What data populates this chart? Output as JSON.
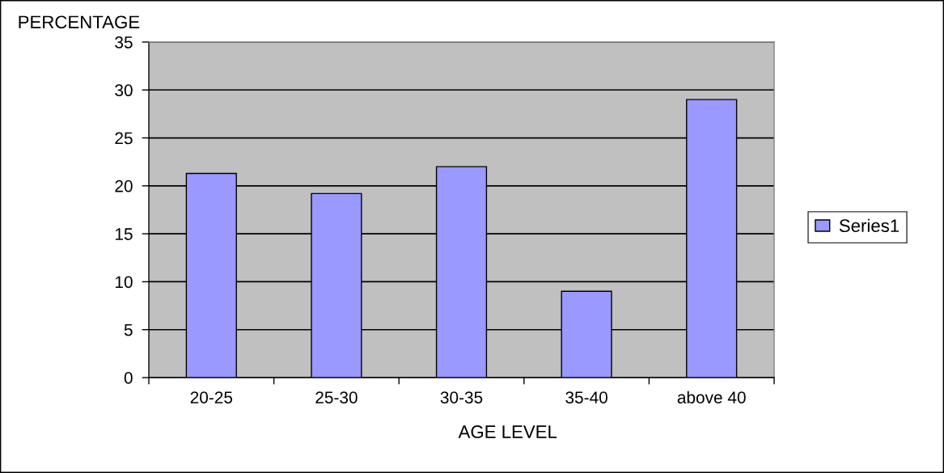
{
  "chart_data": {
    "type": "bar",
    "xlabel": "AGE LEVEL",
    "ylabel": "PERCENTAGE",
    "categories": [
      "20-25",
      "25-30",
      "30-35",
      "35-40",
      "above 40"
    ],
    "series": [
      {
        "name": "Series1",
        "color": "#9999ff",
        "values": [
          21.3,
          19.2,
          22,
          9,
          29
        ]
      }
    ],
    "ylim": [
      0,
      35
    ],
    "yticks": [
      0,
      5,
      10,
      15,
      20,
      25,
      30,
      35
    ],
    "grid": "y",
    "legend": "right"
  }
}
